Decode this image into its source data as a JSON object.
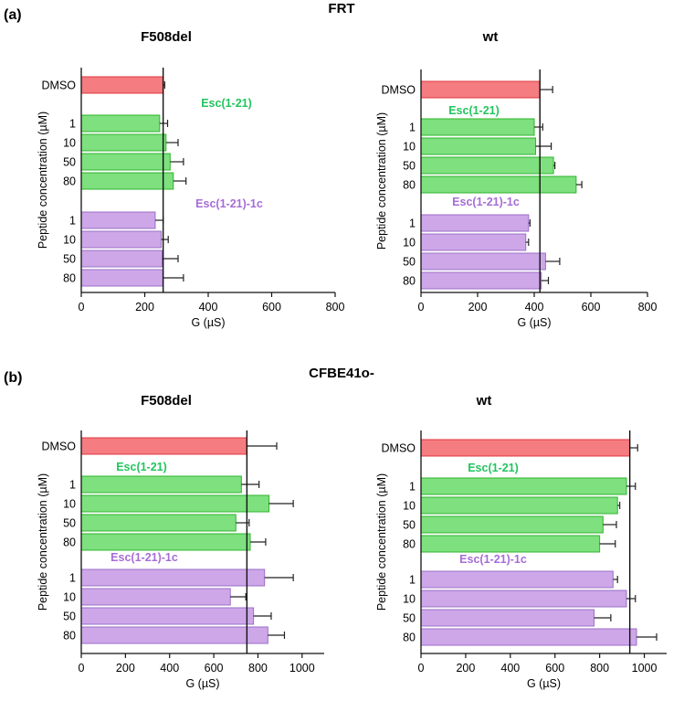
{
  "figure": {
    "panels": [
      {
        "label": "(a)",
        "title": "FRT"
      },
      {
        "label": "(b)",
        "title": "CFBE41o-"
      }
    ]
  },
  "colors": {
    "dmso_fill": "#f57c80",
    "dmso_stroke": "#e0393f",
    "green_fill": "#7ee07e",
    "green_stroke": "#2fb52f",
    "purple_fill": "#cda7e8",
    "purple_stroke": "#9b6fc7",
    "green_text": "#22c55e",
    "purple_text": "#a66dd6",
    "axis": "#111111",
    "error": "#222222"
  },
  "chart_data": [
    {
      "type": "bar",
      "orientation": "horizontal",
      "panel": "(a)",
      "title": "F508del",
      "xlabel": "G (µS)",
      "ylabel": "Peptide concentration (µM)",
      "xlim": [
        0,
        800
      ],
      "xticks": [
        0,
        200,
        400,
        600,
        800
      ],
      "reference_value": 258,
      "groups": [
        {
          "name": "",
          "color": "dmso",
          "bars": [
            {
              "label": "DMSO",
              "value": 258,
              "error": 5
            }
          ]
        },
        {
          "name": "Esc(1-21)",
          "color": "green",
          "bars": [
            {
              "label": "1",
              "value": 247,
              "error": 25
            },
            {
              "label": "10",
              "value": 267,
              "error": 38
            },
            {
              "label": "50",
              "value": 280,
              "error": 42
            },
            {
              "label": "80",
              "value": 290,
              "error": 40
            }
          ]
        },
        {
          "name": "Esc(1-21)-1c",
          "color": "purple",
          "bars": [
            {
              "label": "1",
              "value": 233,
              "error": 25
            },
            {
              "label": "10",
              "value": 252,
              "error": 22
            },
            {
              "label": "50",
              "value": 255,
              "error": 50
            },
            {
              "label": "80",
              "value": 257,
              "error": 65
            }
          ]
        }
      ]
    },
    {
      "type": "bar",
      "orientation": "horizontal",
      "panel": "(a)",
      "title": "wt",
      "xlabel": "G (µS)",
      "ylabel": "Peptide concentration (µM)",
      "xlim": [
        0,
        800
      ],
      "xticks": [
        0,
        200,
        400,
        600,
        800
      ],
      "reference_value": 420,
      "groups": [
        {
          "name": "",
          "color": "dmso",
          "bars": [
            {
              "label": "DMSO",
              "value": 420,
              "error": 45
            }
          ]
        },
        {
          "name": "Esc(1-21)",
          "color": "green",
          "bars": [
            {
              "label": "1",
              "value": 400,
              "error": 30
            },
            {
              "label": "10",
              "value": 405,
              "error": 55
            },
            {
              "label": "50",
              "value": 468,
              "error": 5
            },
            {
              "label": "80",
              "value": 548,
              "error": 20
            }
          ]
        },
        {
          "name": "Esc(1-21)-1c",
          "color": "purple",
          "bars": [
            {
              "label": "1",
              "value": 380,
              "error": 5
            },
            {
              "label": "10",
              "value": 370,
              "error": 10
            },
            {
              "label": "50",
              "value": 440,
              "error": 50
            },
            {
              "label": "80",
              "value": 425,
              "error": 25
            }
          ]
        }
      ]
    },
    {
      "type": "bar",
      "orientation": "horizontal",
      "panel": "(b)",
      "title": "F508del",
      "xlabel": "G (µS)",
      "ylabel": "Peptide concentration (µM)",
      "xlim": [
        0,
        1100
      ],
      "xticks": [
        0,
        200,
        400,
        600,
        800,
        1000
      ],
      "reference_value": 750,
      "groups": [
        {
          "name": "",
          "color": "dmso",
          "bars": [
            {
              "label": "DMSO",
              "value": 750,
              "error": 135
            }
          ]
        },
        {
          "name": "Esc(1-21)",
          "color": "green",
          "bars": [
            {
              "label": "1",
              "value": 725,
              "error": 80
            },
            {
              "label": "10",
              "value": 850,
              "error": 110
            },
            {
              "label": "50",
              "value": 700,
              "error": 60
            },
            {
              "label": "80",
              "value": 765,
              "error": 70
            }
          ]
        },
        {
          "name": "Esc(1-21)-1c",
          "color": "purple",
          "bars": [
            {
              "label": "1",
              "value": 830,
              "error": 130
            },
            {
              "label": "10",
              "value": 675,
              "error": 70
            },
            {
              "label": "50",
              "value": 780,
              "error": 80
            },
            {
              "label": "80",
              "value": 845,
              "error": 75
            }
          ]
        }
      ]
    },
    {
      "type": "bar",
      "orientation": "horizontal",
      "panel": "(b)",
      "title": "wt",
      "xlabel": "G (µS)",
      "ylabel": "Peptide concentration (µM)",
      "xlim": [
        0,
        1100
      ],
      "xticks": [
        0,
        200,
        400,
        600,
        800,
        1000
      ],
      "reference_value": 935,
      "groups": [
        {
          "name": "",
          "color": "dmso",
          "bars": [
            {
              "label": "DMSO",
              "value": 935,
              "error": 35
            }
          ]
        },
        {
          "name": "Esc(1-21)",
          "color": "green",
          "bars": [
            {
              "label": "1",
              "value": 920,
              "error": 40
            },
            {
              "label": "10",
              "value": 880,
              "error": 10
            },
            {
              "label": "50",
              "value": 815,
              "error": 60
            },
            {
              "label": "80",
              "value": 800,
              "error": 70
            }
          ]
        },
        {
          "name": "Esc(1-21)-1c",
          "color": "purple",
          "bars": [
            {
              "label": "1",
              "value": 860,
              "error": 20
            },
            {
              "label": "10",
              "value": 920,
              "error": 40
            },
            {
              "label": "50",
              "value": 775,
              "error": 75
            },
            {
              "label": "80",
              "value": 965,
              "error": 90
            }
          ]
        }
      ]
    }
  ]
}
